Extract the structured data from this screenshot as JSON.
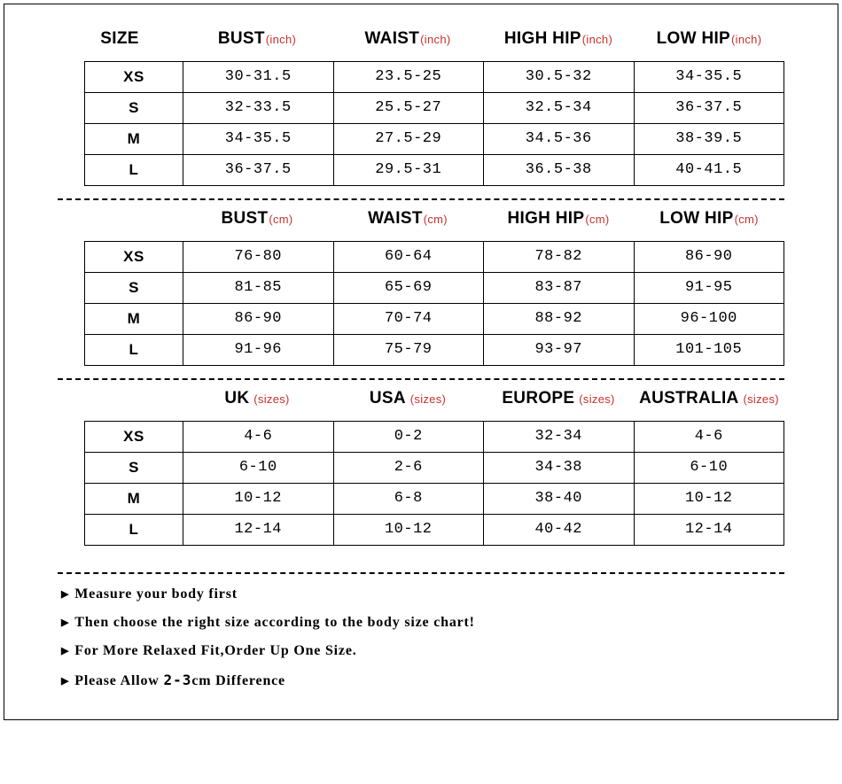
{
  "sections": [
    {
      "showSizeHeader": true,
      "sizeHeader": "SIZE",
      "unitLabel": "(inch)",
      "columns": [
        "BUST",
        "WAIST",
        "HIGH HIP",
        "LOW HIP"
      ],
      "rows": [
        {
          "size": "XS",
          "cells": [
            "30-31.5",
            "23.5-25",
            "30.5-32",
            "34-35.5"
          ]
        },
        {
          "size": "S",
          "cells": [
            "32-33.5",
            "25.5-27",
            "32.5-34",
            "36-37.5"
          ]
        },
        {
          "size": "M",
          "cells": [
            "34-35.5",
            "27.5-29",
            "34.5-36",
            "38-39.5"
          ]
        },
        {
          "size": "L",
          "cells": [
            "36-37.5",
            "29.5-31",
            "36.5-38",
            "40-41.5"
          ]
        }
      ]
    },
    {
      "showSizeHeader": false,
      "unitLabel": "(cm)",
      "columns": [
        "BUST",
        "WAIST",
        "HIGH HIP",
        "LOW HIP"
      ],
      "rows": [
        {
          "size": "XS",
          "cells": [
            "76-80",
            "60-64",
            "78-82",
            "86-90"
          ]
        },
        {
          "size": "S",
          "cells": [
            "81-85",
            "65-69",
            "83-87",
            "91-95"
          ]
        },
        {
          "size": "M",
          "cells": [
            "86-90",
            "70-74",
            "88-92",
            "96-100"
          ]
        },
        {
          "size": "L",
          "cells": [
            "91-96",
            "75-79",
            "93-97",
            "101-105"
          ]
        }
      ]
    },
    {
      "showSizeHeader": false,
      "unitLabel": " (sizes)",
      "columns": [
        "UK",
        "USA",
        "EUROPE",
        "AUSTRALIA"
      ],
      "rows": [
        {
          "size": "XS",
          "cells": [
            "4-6",
            "0-2",
            "32-34",
            "4-6"
          ]
        },
        {
          "size": "S",
          "cells": [
            "6-10",
            "2-6",
            "34-38",
            "6-10"
          ]
        },
        {
          "size": "M",
          "cells": [
            "10-12",
            "6-8",
            "38-40",
            "10-12"
          ]
        },
        {
          "size": "L",
          "cells": [
            "12-14",
            "10-12",
            "40-42",
            "12-14"
          ]
        }
      ]
    }
  ],
  "notes": [
    {
      "pre": "Measure your body first",
      "mono": "",
      "post": ""
    },
    {
      "pre": "Then choose the right size according to the body size chart!",
      "mono": "",
      "post": ""
    },
    {
      "pre": "For More Relaxed Fit,Order Up One Size.",
      "mono": "",
      "post": ""
    },
    {
      "pre": "Please Allow ",
      "mono": "2-3",
      "post": "cm Difference"
    }
  ],
  "style": {
    "text_color": "#000000",
    "unit_color": "#c9302c",
    "background": "#ffffff",
    "border_color": "#000000",
    "header_fontsize": 19,
    "cell_fontsize": 17,
    "note_fontsize": 16
  }
}
